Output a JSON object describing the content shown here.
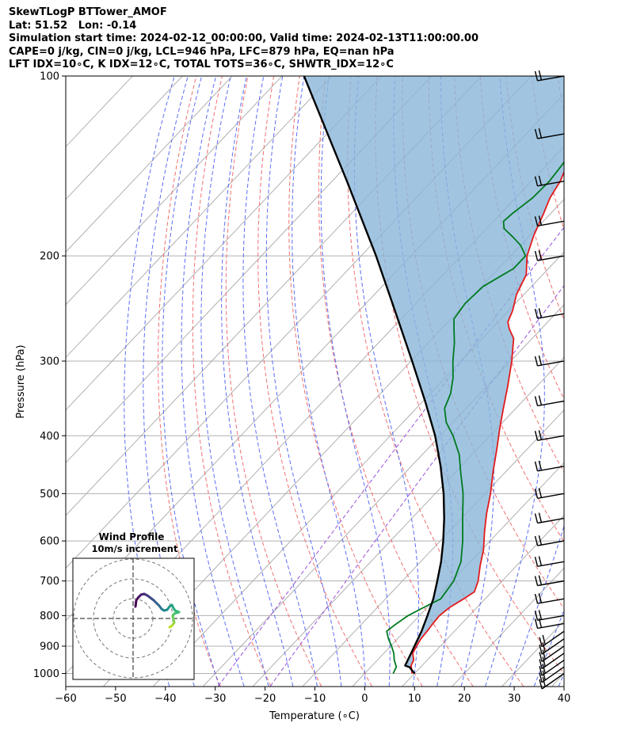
{
  "header": {
    "line1": "SkewTLogP BTTower_AMOF",
    "line2": "Lat: 51.52   Lon: -0.14",
    "line3": "Simulation start time: 2024-02-12_00:00:00, Valid time: 2024-02-13T11:00:00.00",
    "line4": "CAPE=0 j/kg, CIN=0 j/kg, LCL=946 hPa, LFC=879 hPa, EQ=nan hPa",
    "line5": "LFT IDX=10∘C, K IDX=12∘C, TOTAL TOTS=36∘C, SHWTR_IDX=12∘C"
  },
  "chart_data": {
    "type": "line",
    "subtype": "skew-T log-P diagram",
    "xlabel": "Temperature (∘C)",
    "ylabel": "Pressure (hPa)",
    "xlim": [
      -60,
      40
    ],
    "ylim": [
      1050,
      100
    ],
    "y_scale": "log",
    "x_ticks": [
      "−60",
      "−50",
      "−40",
      "−30",
      "−20",
      "−10",
      "0",
      "10",
      "20",
      "30",
      "40"
    ],
    "y_ticks": [
      1000,
      900,
      800,
      700,
      600,
      500,
      400,
      300,
      200,
      100
    ],
    "grid": true,
    "series": [
      {
        "key": "temperature",
        "color": "#e31a1c",
        "points": [
          [
            1000,
            9.5
          ],
          [
            970,
            7.8
          ],
          [
            950,
            7.3
          ],
          [
            925,
            5.8
          ],
          [
            900,
            5.2
          ],
          [
            875,
            4.7
          ],
          [
            850,
            4.5
          ],
          [
            825,
            4.2
          ],
          [
            800,
            4.0
          ],
          [
            775,
            4.5
          ],
          [
            750,
            5.7
          ],
          [
            730,
            6.5
          ],
          [
            700,
            5.2
          ],
          [
            660,
            2.7
          ],
          [
            620,
            0.3
          ],
          [
            580,
            -2.8
          ],
          [
            540,
            -5.9
          ],
          [
            500,
            -8.9
          ],
          [
            460,
            -12.5
          ],
          [
            420,
            -16.2
          ],
          [
            390,
            -19.3
          ],
          [
            360,
            -22.5
          ],
          [
            330,
            -25.9
          ],
          [
            300,
            -29.8
          ],
          [
            275,
            -33.7
          ],
          [
            265,
            -36.4
          ],
          [
            258,
            -38.0
          ],
          [
            247,
            -39.2
          ],
          [
            232,
            -41.5
          ],
          [
            215,
            -43.3
          ],
          [
            200,
            -46.7
          ],
          [
            185,
            -49.2
          ],
          [
            170,
            -51.4
          ],
          [
            160,
            -53.1
          ],
          [
            150,
            -54.2
          ],
          [
            140,
            -56.1
          ],
          [
            130,
            -57.8
          ],
          [
            120,
            -60.0
          ],
          [
            115,
            -61.5
          ],
          [
            110,
            -63.3
          ],
          [
            105,
            -65.5
          ],
          [
            100,
            -67.3
          ]
        ]
      },
      {
        "key": "dewpoint",
        "color": "#007a1f",
        "points": [
          [
            1000,
            5.7
          ],
          [
            975,
            5.1
          ],
          [
            950,
            3.4
          ],
          [
            925,
            2.0
          ],
          [
            900,
            0.2
          ],
          [
            875,
            -1.8
          ],
          [
            850,
            -3.6
          ],
          [
            830,
            -3.2
          ],
          [
            800,
            -2.3
          ],
          [
            775,
            -0.7
          ],
          [
            750,
            1.1
          ],
          [
            700,
            0.3
          ],
          [
            650,
            -1.9
          ],
          [
            600,
            -5.5
          ],
          [
            550,
            -9.8
          ],
          [
            500,
            -14.4
          ],
          [
            460,
            -19.0
          ],
          [
            430,
            -22.6
          ],
          [
            400,
            -27.4
          ],
          [
            380,
            -31.3
          ],
          [
            360,
            -34.3
          ],
          [
            340,
            -35.9
          ],
          [
            320,
            -38.4
          ],
          [
            300,
            -41.6
          ],
          [
            280,
            -44.7
          ],
          [
            265,
            -47.5
          ],
          [
            255,
            -49.4
          ],
          [
            240,
            -50.1
          ],
          [
            225,
            -49.7
          ],
          [
            210,
            -47.0
          ],
          [
            200,
            -47.0
          ],
          [
            192,
            -50.0
          ],
          [
            186,
            -53.1
          ],
          [
            180,
            -56.5
          ],
          [
            175,
            -58.0
          ],
          [
            170,
            -57.7
          ],
          [
            160,
            -56.6
          ],
          [
            150,
            -56.4
          ],
          [
            140,
            -57.0
          ],
          [
            130,
            -58.4
          ],
          [
            120,
            -60.0
          ],
          [
            110,
            -62.7
          ],
          [
            100,
            -65.5
          ]
        ]
      },
      {
        "key": "parcel",
        "color": "#000000",
        "points": [
          [
            1000,
            10.0
          ],
          [
            976,
            7.8
          ],
          [
            970,
            6.6
          ],
          [
            950,
            6.1
          ],
          [
            900,
            4.8
          ],
          [
            850,
            3.4
          ],
          [
            800,
            1.6
          ],
          [
            750,
            -0.4
          ],
          [
            700,
            -3.0
          ],
          [
            650,
            -5.9
          ],
          [
            600,
            -9.4
          ],
          [
            550,
            -13.5
          ],
          [
            500,
            -18.3
          ],
          [
            450,
            -24.1
          ],
          [
            400,
            -31.0
          ],
          [
            350,
            -39.6
          ],
          [
            300,
            -49.8
          ],
          [
            250,
            -62.0
          ],
          [
            200,
            -77.0
          ],
          [
            150,
            -97.0
          ],
          [
            100,
            -125.6
          ]
        ]
      }
    ]
  },
  "inset": {
    "title": "Wind Profile",
    "subtitle": "10m/s increment"
  }
}
